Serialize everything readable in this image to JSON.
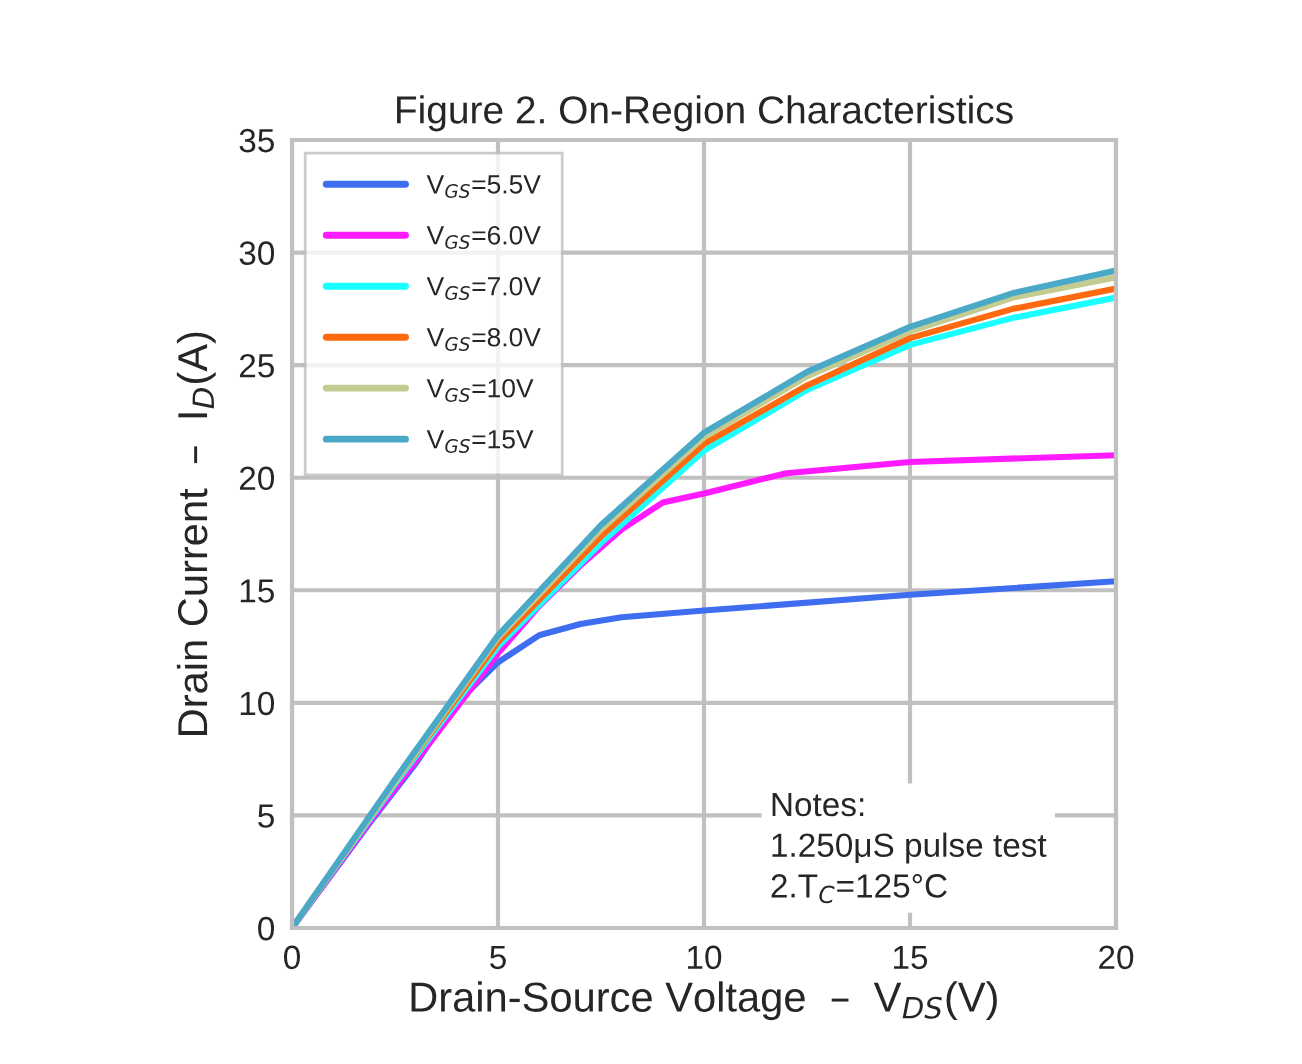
{
  "chart_data": {
    "type": "line",
    "title": "Figure 2. On-Region Characteristics",
    "xlabel": "Drain-Source Voltage  –  V$_{DS}$(V)",
    "ylabel": "Drain Current  –  I$_{D}$(A)",
    "xlim": [
      0,
      20
    ],
    "ylim": [
      0,
      35
    ],
    "xticks": [
      0,
      5,
      10,
      15,
      20
    ],
    "yticks": [
      0,
      5,
      10,
      15,
      20,
      25,
      30,
      35
    ],
    "grid": true,
    "legend": "top left",
    "line_style": "solid",
    "marker": "none",
    "series": [
      {
        "name": "V$_{GS}$=5.5V",
        "color": "#3f6df0",
        "x": [
          0,
          1.9,
          3,
          4,
          5,
          6,
          7,
          8,
          10,
          15,
          20
        ],
        "values": [
          0,
          4.7,
          7.3,
          10.0,
          11.8,
          13.0,
          13.5,
          13.8,
          14.1,
          14.8,
          15.4
        ]
      },
      {
        "name": "V$_{GS}$=6.0V",
        "color": "#ff1aff",
        "x": [
          0,
          2,
          5,
          6,
          7,
          8,
          9,
          10,
          12,
          15,
          20
        ],
        "values": [
          0,
          5.0,
          12.2,
          14.3,
          16.1,
          17.7,
          18.9,
          19.3,
          20.2,
          20.7,
          21.0
        ]
      },
      {
        "name": "V$_{GS}$=7.0V",
        "color": "#1affff",
        "x": [
          0,
          2.5,
          5,
          7.5,
          10,
          12.5,
          15,
          17.5,
          20
        ],
        "values": [
          0,
          6.4,
          12.5,
          17.1,
          21.2,
          23.9,
          25.9,
          27.1,
          28.0
        ]
      },
      {
        "name": "V$_{GS}$=8.0V",
        "color": "#ff6a10",
        "x": [
          0,
          2.5,
          5,
          7.5,
          10,
          12.5,
          15,
          17.5,
          20
        ],
        "values": [
          0,
          6.5,
          12.7,
          17.4,
          21.5,
          24.1,
          26.2,
          27.5,
          28.4
        ]
      },
      {
        "name": "V$_{GS}$=10V",
        "color": "#c3cc90",
        "x": [
          0,
          2.5,
          5,
          7.5,
          10,
          12.5,
          15,
          17.5,
          20
        ],
        "values": [
          0,
          6.5,
          12.9,
          17.7,
          21.8,
          24.5,
          26.5,
          28.0,
          28.9
        ]
      },
      {
        "name": "V$_{GS}$=15V",
        "color": "#4ba9c8",
        "x": [
          0,
          2.5,
          5,
          7.5,
          10,
          12.5,
          15,
          17.5,
          20
        ],
        "values": [
          0,
          6.6,
          13.0,
          17.9,
          22.0,
          24.7,
          26.7,
          28.2,
          29.2
        ]
      }
    ],
    "annotations": [
      "Notes:\n1.250μS pulse test\n2.T$_{C}$=125°C"
    ]
  }
}
